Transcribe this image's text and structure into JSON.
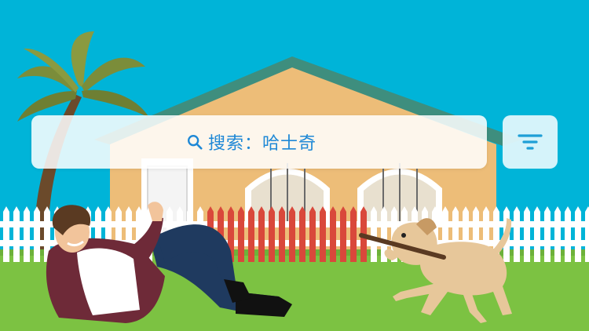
{
  "search": {
    "label": "搜索：哈士奇"
  },
  "icons": {
    "search": "search-icon",
    "filter": "filter-icon"
  },
  "colors": {
    "sky": "#00B4D8",
    "accent": "#1E88D6",
    "grass": "#7CC242",
    "house": "#EDBD78",
    "roof": "#3E8E7E"
  }
}
